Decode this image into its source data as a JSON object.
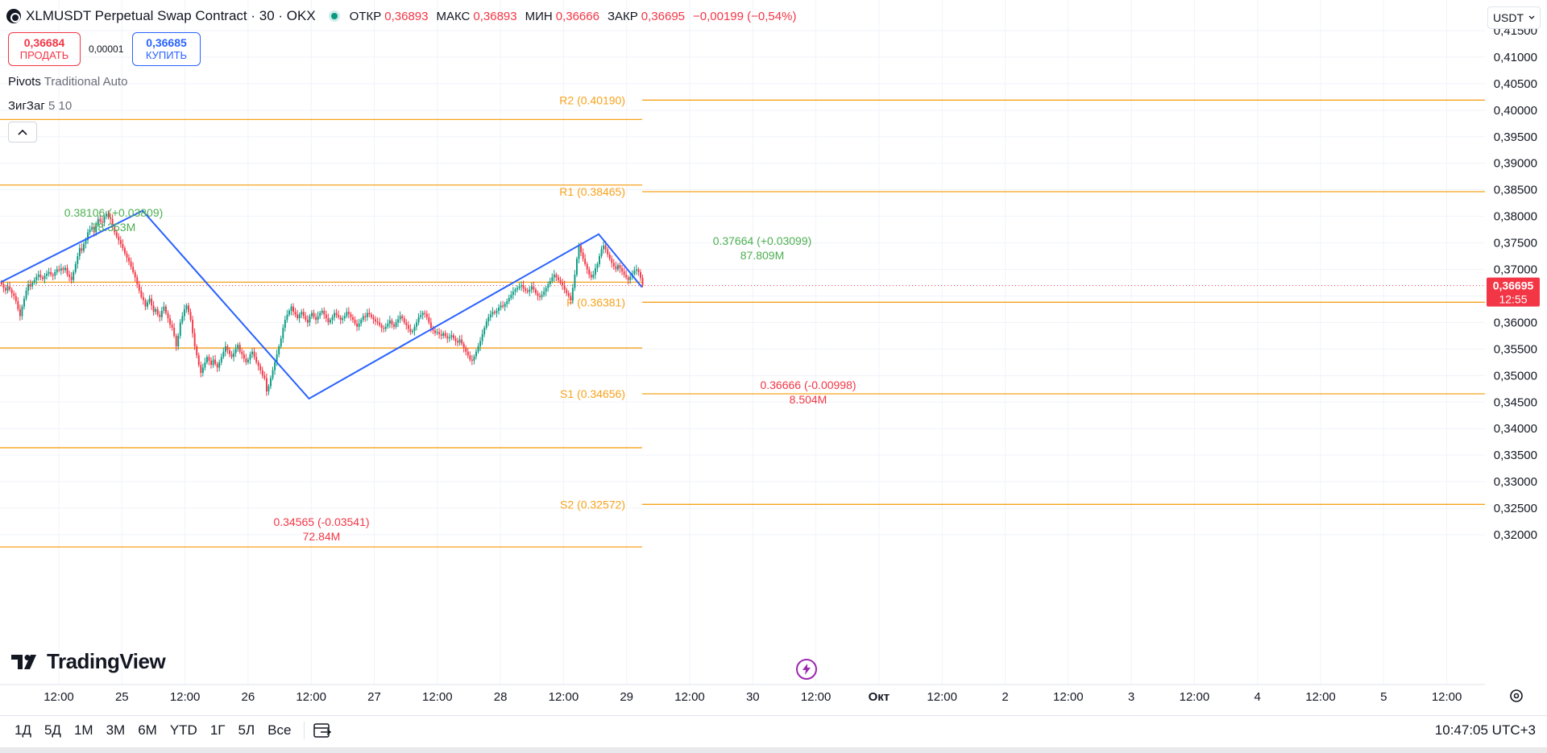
{
  "header": {
    "title": "XLMUSDT Perpetual Swap Contract · 30 · OKX",
    "ohlc": {
      "open_label": "ОТКР",
      "open": "0,36893",
      "high_label": "МАКС",
      "high": "0,36893",
      "low_label": "МИН",
      "low": "0,36666",
      "close_label": "ЗАКР",
      "close": "0,36695",
      "change": "−0,00199 (−0,54%)"
    }
  },
  "trade": {
    "sell_price": "0,36684",
    "sell_label": "ПРОДАТЬ",
    "spread": "0,00001",
    "buy_price": "0,36685",
    "buy_label": "КУПИТЬ"
  },
  "indicators": [
    {
      "name": "Pivots",
      "params": "Traditional Auto"
    },
    {
      "name": "ЗигЗаг",
      "params": "5 10"
    }
  ],
  "currency": "USDT",
  "logo_text": "TradingView",
  "bottom": {
    "ranges": [
      "1Д",
      "5Д",
      "1М",
      "3М",
      "6М",
      "YTD",
      "1Г",
      "5Л",
      "Все"
    ],
    "clock": "10:47:05 UTC+3"
  },
  "colors": {
    "up": "#089981",
    "down": "#f23645",
    "pivot": "#f7a21b",
    "zigzag": "#2962ff",
    "label_green": "#4caf50"
  },
  "chart_data": {
    "type": "candlestick",
    "ylim": [
      0.3175,
      0.417
    ],
    "y_ticks": [
      "0,41500",
      "0,41000",
      "0,40500",
      "0,40000",
      "0,39500",
      "0,39000",
      "0,38500",
      "0,38000",
      "0,37500",
      "0,37000",
      "0,36500",
      "0,36000",
      "0,35500",
      "0,35000",
      "0,34500",
      "0,34000",
      "0,33500",
      "0,33000",
      "0,32500",
      "0,32000"
    ],
    "x_ticks": [
      "12:00",
      "25",
      "12:00",
      "26",
      "12:00",
      "27",
      "12:00",
      "28",
      "12:00",
      "29",
      "12:00",
      "30",
      "12:00",
      "Окт",
      "12:00",
      "2",
      "12:00",
      "3",
      "12:00",
      "4",
      "12:00",
      "5",
      "12:00"
    ],
    "x_ticks_bold": [
      "Окт"
    ],
    "last_price": "0,36695",
    "countdown": "12:55",
    "pivot_levels_current": [
      {
        "label": "R2 (0.40190)",
        "value": 0.4019
      },
      {
        "label": "R1 (0.38465)",
        "value": 0.38465
      },
      {
        "label": "P (0.36381)",
        "value": 0.36381
      },
      {
        "label": "S1 (0.34656)",
        "value": 0.34656
      },
      {
        "label": "S2 (0.32572)",
        "value": 0.32572
      }
    ],
    "pivot_levels_previous": [
      0.39825,
      0.3859,
      0.3676,
      0.3552,
      0.3364,
      0.3177
    ],
    "zigzag_labels": [
      {
        "price": "0.38106 (+0.03809)",
        "volume": "78.353M",
        "kind": "high"
      },
      {
        "price": "0.34565 (-0.03541)",
        "volume": "72.84M",
        "kind": "low"
      },
      {
        "price": "0.37664 (+0.03099)",
        "volume": "87.809M",
        "kind": "high"
      },
      {
        "price": "0.36666 (-0.00998)",
        "volume": "8.504M",
        "kind": "low"
      }
    ],
    "zigzag_points": [
      {
        "t": 0,
        "v": 0.3676
      },
      {
        "t": 69,
        "v": 0.38106
      },
      {
        "t": 150,
        "v": 0.34565
      },
      {
        "t": 291,
        "v": 0.37664
      },
      {
        "t": 312,
        "v": 0.36666
      }
    ],
    "candles_close": [
      0.3672,
      0.3665,
      0.366,
      0.3668,
      0.3662,
      0.3655,
      0.365,
      0.364,
      0.3625,
      0.3612,
      0.363,
      0.3645,
      0.366,
      0.3672,
      0.3668,
      0.3675,
      0.368,
      0.3686,
      0.369,
      0.3685,
      0.3682,
      0.3688,
      0.3692,
      0.3695,
      0.369,
      0.3688,
      0.3695,
      0.37,
      0.3698,
      0.3702,
      0.3699,
      0.3703,
      0.369,
      0.3686,
      0.368,
      0.3695,
      0.371,
      0.3725,
      0.374,
      0.3735,
      0.3748,
      0.3755,
      0.377,
      0.3775,
      0.378,
      0.377,
      0.3785,
      0.3795,
      0.379,
      0.3788,
      0.38,
      0.3805,
      0.3798,
      0.3795,
      0.378,
      0.377,
      0.3762,
      0.3755,
      0.3748,
      0.374,
      0.373,
      0.3722,
      0.3715,
      0.3705,
      0.3695,
      0.3685,
      0.3672,
      0.366,
      0.3648,
      0.3642,
      0.363,
      0.3638,
      0.3645,
      0.3632,
      0.362,
      0.3625,
      0.3615,
      0.361,
      0.3622,
      0.363,
      0.3618,
      0.3608,
      0.3596,
      0.359,
      0.3575,
      0.3555,
      0.3575,
      0.36,
      0.3612,
      0.3625,
      0.3632,
      0.362,
      0.3605,
      0.358,
      0.3555,
      0.3538,
      0.352,
      0.3505,
      0.3515,
      0.3525,
      0.3535,
      0.3528,
      0.352,
      0.353,
      0.3522,
      0.3515,
      0.3525,
      0.3535,
      0.3545,
      0.3555,
      0.3548,
      0.354,
      0.3535,
      0.3542,
      0.355,
      0.3558,
      0.3545,
      0.354,
      0.3532,
      0.3525,
      0.353,
      0.354,
      0.3545,
      0.3535,
      0.3525,
      0.3518,
      0.351,
      0.35,
      0.3495,
      0.347,
      0.348,
      0.3495,
      0.351,
      0.3525,
      0.354,
      0.3555,
      0.357,
      0.359,
      0.3605,
      0.3615,
      0.3622,
      0.363,
      0.362,
      0.3615,
      0.3608,
      0.3615,
      0.362,
      0.3612,
      0.3605,
      0.36,
      0.3612,
      0.3618,
      0.361,
      0.3605,
      0.3612,
      0.3618,
      0.3622,
      0.3615,
      0.3608,
      0.36,
      0.3605,
      0.361,
      0.3618,
      0.3614,
      0.361,
      0.3605,
      0.3608,
      0.3612,
      0.362,
      0.3616,
      0.361,
      0.3605,
      0.3598,
      0.3592,
      0.3598,
      0.3605,
      0.3612,
      0.361,
      0.3618,
      0.3615,
      0.361,
      0.3606,
      0.3602,
      0.36,
      0.3595,
      0.359,
      0.3588,
      0.3592,
      0.3598,
      0.3604,
      0.3596,
      0.3592,
      0.36,
      0.3606,
      0.3612,
      0.3608,
      0.36,
      0.3595,
      0.3588,
      0.3582,
      0.3584,
      0.3592,
      0.36,
      0.361,
      0.3614,
      0.3618,
      0.3616,
      0.361,
      0.36,
      0.359,
      0.3585,
      0.358,
      0.3582,
      0.3578,
      0.3575,
      0.358,
      0.3574,
      0.357,
      0.3572,
      0.3576,
      0.357,
      0.3565,
      0.3562,
      0.3568,
      0.356,
      0.3552,
      0.3545,
      0.3538,
      0.353,
      0.3528,
      0.3536,
      0.3545,
      0.3555,
      0.3565,
      0.3578,
      0.359,
      0.3602,
      0.361,
      0.3615,
      0.362,
      0.3618,
      0.3622,
      0.3628,
      0.3632,
      0.363,
      0.3635,
      0.364,
      0.3646,
      0.3652,
      0.3658,
      0.3662,
      0.3665,
      0.3668,
      0.367,
      0.3664,
      0.366,
      0.3658,
      0.3662,
      0.3668,
      0.3662,
      0.3655,
      0.365,
      0.3648,
      0.3652,
      0.3658,
      0.3665,
      0.3672,
      0.3678,
      0.3685,
      0.369,
      0.3685,
      0.368,
      0.3675,
      0.367,
      0.3662,
      0.3655,
      0.365,
      0.3642,
      0.3665,
      0.369,
      0.372,
      0.3745,
      0.3732,
      0.372,
      0.371,
      0.37,
      0.369,
      0.3685,
      0.369,
      0.3702,
      0.371,
      0.3725,
      0.3738,
      0.3745,
      0.3738,
      0.3728,
      0.372,
      0.3712,
      0.3706,
      0.37,
      0.3708,
      0.3702,
      0.3696,
      0.369,
      0.3685,
      0.368,
      0.3686,
      0.3692,
      0.3698,
      0.37,
      0.3695,
      0.3684,
      0.367
    ]
  }
}
